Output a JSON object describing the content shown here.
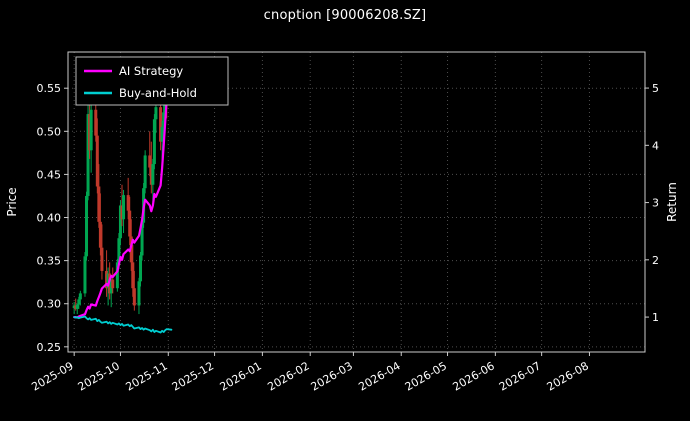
{
  "chart_data": {
    "type": "candlestick+line",
    "title": "cnoption [90006208.SZ]",
    "background": "#000000",
    "text_color": "#ffffff",
    "grid": {
      "on": true,
      "color": "#4d4d4d",
      "style": "dotted"
    },
    "x_axis": {
      "unit": "days since 2025-09-01",
      "range": [
        -4,
        370
      ],
      "label_rotation": -30,
      "ticks": [
        {
          "pos": 0,
          "label": "2025-09"
        },
        {
          "pos": 30,
          "label": "2025-10"
        },
        {
          "pos": 61,
          "label": "2025-11"
        },
        {
          "pos": 91,
          "label": "2025-12"
        },
        {
          "pos": 122,
          "label": "2026-01"
        },
        {
          "pos": 153,
          "label": "2026-02"
        },
        {
          "pos": 181,
          "label": "2026-03"
        },
        {
          "pos": 212,
          "label": "2026-04"
        },
        {
          "pos": 242,
          "label": "2026-05"
        },
        {
          "pos": 273,
          "label": "2026-06"
        },
        {
          "pos": 303,
          "label": "2026-07"
        },
        {
          "pos": 334,
          "label": "2026-08"
        }
      ]
    },
    "left_axis": {
      "label": "Price",
      "range": [
        0.244,
        0.592
      ],
      "ticks": [
        0.25,
        0.3,
        0.35,
        0.4,
        0.45,
        0.5,
        0.55
      ]
    },
    "right_axis": {
      "label": "Return",
      "range": [
        0.39,
        5.63
      ],
      "ticks": [
        1,
        2,
        3,
        4,
        5
      ]
    },
    "legend": {
      "position": "upper-left",
      "entries": [
        "AI Strategy",
        "Buy-and-Hold"
      ]
    },
    "candles": {
      "up_color": "#00a651",
      "down_color": "#c0392b",
      "data": [
        [
          0,
          0.295,
          0.302,
          0.288,
          0.298
        ],
        [
          1,
          0.298,
          0.306,
          0.292,
          0.294
        ],
        [
          2,
          0.294,
          0.3,
          0.288,
          0.299
        ],
        [
          3,
          0.299,
          0.308,
          0.294,
          0.305
        ],
        [
          4,
          0.305,
          0.315,
          0.298,
          0.312
        ],
        [
          7,
          0.312,
          0.36,
          0.308,
          0.355
        ],
        [
          8,
          0.355,
          0.43,
          0.35,
          0.425
        ],
        [
          9,
          0.425,
          0.55,
          0.42,
          0.52
        ],
        [
          10,
          0.52,
          0.548,
          0.468,
          0.478
        ],
        [
          11,
          0.478,
          0.532,
          0.452,
          0.525
        ],
        [
          14,
          0.525,
          0.556,
          0.488,
          0.495
        ],
        [
          15,
          0.495,
          0.515,
          0.428,
          0.436
        ],
        [
          16,
          0.436,
          0.462,
          0.388,
          0.395
        ],
        [
          17,
          0.395,
          0.428,
          0.356,
          0.365
        ],
        [
          18,
          0.365,
          0.392,
          0.328,
          0.338
        ],
        [
          21,
          0.338,
          0.362,
          0.308,
          0.318
        ],
        [
          22,
          0.318,
          0.342,
          0.298,
          0.335
        ],
        [
          23,
          0.335,
          0.348,
          0.305,
          0.312
        ],
        [
          24,
          0.312,
          0.332,
          0.296,
          0.328
        ],
        [
          25,
          0.328,
          0.342,
          0.312,
          0.318
        ],
        [
          28,
          0.318,
          0.352,
          0.314,
          0.348
        ],
        [
          29,
          0.348,
          0.382,
          0.34,
          0.376
        ],
        [
          30,
          0.376,
          0.42,
          0.368,
          0.414
        ],
        [
          31,
          0.414,
          0.438,
          0.39,
          0.398
        ],
        [
          32,
          0.398,
          0.432,
          0.382,
          0.426
        ],
        [
          35,
          0.426,
          0.446,
          0.398,
          0.408
        ],
        [
          36,
          0.408,
          0.424,
          0.368,
          0.378
        ],
        [
          37,
          0.378,
          0.398,
          0.338,
          0.348
        ],
        [
          38,
          0.348,
          0.368,
          0.308,
          0.318
        ],
        [
          39,
          0.318,
          0.338,
          0.292,
          0.298
        ],
        [
          42,
          0.298,
          0.33,
          0.288,
          0.326
        ],
        [
          43,
          0.326,
          0.36,
          0.32,
          0.356
        ],
        [
          44,
          0.356,
          0.4,
          0.35,
          0.394
        ],
        [
          45,
          0.394,
          0.44,
          0.388,
          0.434
        ],
        [
          46,
          0.434,
          0.478,
          0.428,
          0.472
        ],
        [
          49,
          0.472,
          0.5,
          0.448,
          0.458
        ],
        [
          50,
          0.458,
          0.488,
          0.428,
          0.438
        ],
        [
          51,
          0.438,
          0.468,
          0.418,
          0.462
        ],
        [
          52,
          0.462,
          0.52,
          0.456,
          0.514
        ],
        [
          53,
          0.514,
          0.544,
          0.498,
          0.528
        ],
        [
          56,
          0.528,
          0.538,
          0.478,
          0.488
        ],
        [
          57,
          0.488,
          0.512,
          0.462,
          0.505
        ],
        [
          58,
          0.505,
          0.53,
          0.488,
          0.522
        ],
        [
          59,
          0.522,
          0.548,
          0.508,
          0.535
        ],
        [
          60,
          0.535,
          0.552,
          0.515,
          0.53
        ]
      ]
    },
    "series": [
      {
        "name": "AI Strategy",
        "color": "#ff00ff",
        "axis": "right",
        "width": 2.2,
        "points": [
          [
            0,
            1.0
          ],
          [
            1,
            1.0
          ],
          [
            2,
            0.99
          ],
          [
            3,
            1.01
          ],
          [
            4,
            1.02
          ],
          [
            7,
            1.05
          ],
          [
            8,
            1.12
          ],
          [
            9,
            1.18
          ],
          [
            10,
            1.15
          ],
          [
            11,
            1.22
          ],
          [
            14,
            1.2
          ],
          [
            15,
            1.28
          ],
          [
            16,
            1.35
          ],
          [
            17,
            1.42
          ],
          [
            18,
            1.5
          ],
          [
            21,
            1.58
          ],
          [
            22,
            1.55
          ],
          [
            23,
            1.65
          ],
          [
            24,
            1.72
          ],
          [
            25,
            1.7
          ],
          [
            28,
            1.8
          ],
          [
            29,
            1.92
          ],
          [
            30,
            2.05
          ],
          [
            31,
            2.0
          ],
          [
            32,
            2.1
          ],
          [
            35,
            2.18
          ],
          [
            36,
            2.15
          ],
          [
            37,
            2.25
          ],
          [
            38,
            2.35
          ],
          [
            39,
            2.3
          ],
          [
            42,
            2.42
          ],
          [
            43,
            2.55
          ],
          [
            44,
            2.7
          ],
          [
            45,
            2.9
          ],
          [
            46,
            3.05
          ],
          [
            49,
            2.95
          ],
          [
            50,
            2.85
          ],
          [
            51,
            2.95
          ],
          [
            52,
            3.15
          ],
          [
            53,
            3.1
          ],
          [
            56,
            3.3
          ],
          [
            57,
            3.6
          ],
          [
            58,
            4.0
          ],
          [
            59,
            4.4
          ],
          [
            60,
            4.8
          ],
          [
            63,
            5.15
          ]
        ]
      },
      {
        "name": "Buy-and-Hold",
        "color": "#00ced1",
        "axis": "right",
        "width": 1.8,
        "points": [
          [
            0,
            1.0
          ],
          [
            1,
            0.99
          ],
          [
            2,
            1.0
          ],
          [
            3,
            0.98
          ],
          [
            4,
            0.99
          ],
          [
            7,
            1.01
          ],
          [
            8,
            0.98
          ],
          [
            9,
            0.96
          ],
          [
            10,
            0.98
          ],
          [
            11,
            0.95
          ],
          [
            14,
            0.97
          ],
          [
            15,
            0.93
          ],
          [
            16,
            0.95
          ],
          [
            17,
            0.92
          ],
          [
            18,
            0.9
          ],
          [
            21,
            0.92
          ],
          [
            22,
            0.89
          ],
          [
            23,
            0.91
          ],
          [
            24,
            0.88
          ],
          [
            25,
            0.9
          ],
          [
            28,
            0.87
          ],
          [
            29,
            0.89
          ],
          [
            30,
            0.86
          ],
          [
            31,
            0.88
          ],
          [
            32,
            0.85
          ],
          [
            35,
            0.87
          ],
          [
            36,
            0.84
          ],
          [
            37,
            0.86
          ],
          [
            38,
            0.83
          ],
          [
            39,
            0.8
          ],
          [
            42,
            0.82
          ],
          [
            43,
            0.79
          ],
          [
            44,
            0.81
          ],
          [
            45,
            0.78
          ],
          [
            46,
            0.8
          ],
          [
            49,
            0.77
          ],
          [
            50,
            0.75
          ],
          [
            51,
            0.78
          ],
          [
            52,
            0.74
          ],
          [
            53,
            0.76
          ],
          [
            56,
            0.73
          ],
          [
            57,
            0.76
          ],
          [
            58,
            0.74
          ],
          [
            59,
            0.77
          ],
          [
            60,
            0.79
          ],
          [
            63,
            0.78
          ]
        ]
      }
    ]
  }
}
